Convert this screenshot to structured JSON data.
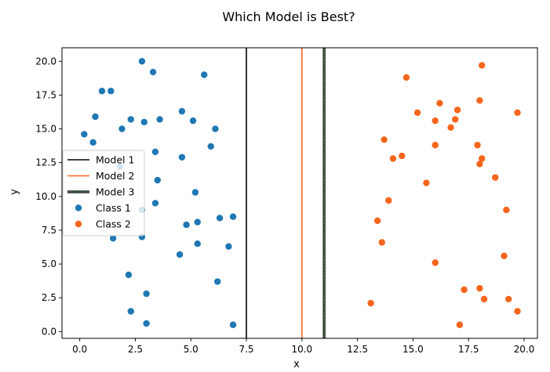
{
  "chart_data": {
    "type": "scatter",
    "title": "Which Model is Best?",
    "xlabel": "x",
    "ylabel": "y",
    "xlim": [
      -0.8,
      20.6
    ],
    "ylim": [
      -0.5,
      21.0
    ],
    "xticks": [
      0.0,
      2.5,
      5.0,
      7.5,
      10.0,
      12.5,
      15.0,
      17.5,
      20.0
    ],
    "xtick_labels": [
      "0.0",
      "2.5",
      "5.0",
      "7.5",
      "10.0",
      "12.5",
      "15.0",
      "17.5",
      "20.0"
    ],
    "yticks": [
      0.0,
      2.5,
      5.0,
      7.5,
      10.0,
      12.5,
      15.0,
      17.5,
      20.0
    ],
    "ytick_labels": [
      "0.0",
      "2.5",
      "5.0",
      "7.5",
      "10.0",
      "12.5",
      "15.0",
      "17.5",
      "20.0"
    ],
    "grid": false,
    "legend_position": "center-left",
    "lines": [
      {
        "name": "Model 1",
        "x": 7.5,
        "color": "#000000",
        "style": "solid"
      },
      {
        "name": "Model 2",
        "x": 10.0,
        "color": "#f5651b",
        "style": "solid"
      },
      {
        "name": "Model 3",
        "x": 11.0,
        "color": "#1b5e20",
        "style": "dotted-double"
      }
    ],
    "series": [
      {
        "name": "Class 1",
        "color": "#1f77b4",
        "points": [
          [
            0.2,
            14.6
          ],
          [
            0.6,
            14.0
          ],
          [
            0.7,
            15.9
          ],
          [
            1.0,
            17.8
          ],
          [
            1.4,
            17.8
          ],
          [
            1.8,
            12.2
          ],
          [
            1.9,
            15.0
          ],
          [
            2.3,
            15.7
          ],
          [
            2.8,
            20.0
          ],
          [
            2.9,
            15.5
          ],
          [
            3.3,
            19.2
          ],
          [
            3.4,
            13.3
          ],
          [
            3.5,
            11.2
          ],
          [
            3.6,
            15.7
          ],
          [
            3.4,
            9.5
          ],
          [
            2.8,
            9.0
          ],
          [
            2.8,
            7.0
          ],
          [
            1.5,
            6.9
          ],
          [
            4.6,
            16.3
          ],
          [
            4.6,
            12.9
          ],
          [
            4.8,
            7.9
          ],
          [
            5.1,
            15.6
          ],
          [
            5.2,
            10.3
          ],
          [
            5.3,
            8.1
          ],
          [
            5.3,
            6.5
          ],
          [
            5.6,
            19.0
          ],
          [
            5.9,
            13.7
          ],
          [
            6.1,
            15.0
          ],
          [
            6.3,
            8.4
          ],
          [
            6.2,
            3.7
          ],
          [
            4.5,
            5.7
          ],
          [
            6.7,
            6.3
          ],
          [
            6.9,
            8.5
          ],
          [
            6.9,
            0.5
          ],
          [
            2.2,
            4.2
          ],
          [
            3.0,
            2.8
          ],
          [
            2.3,
            1.5
          ],
          [
            3.0,
            0.6
          ]
        ]
      },
      {
        "name": "Class 2",
        "color": "#f5651b",
        "points": [
          [
            13.1,
            2.1
          ],
          [
            13.4,
            8.2
          ],
          [
            13.6,
            6.6
          ],
          [
            13.7,
            14.2
          ],
          [
            13.9,
            9.7
          ],
          [
            14.1,
            12.8
          ],
          [
            14.5,
            13.0
          ],
          [
            14.7,
            18.8
          ],
          [
            15.2,
            16.2
          ],
          [
            15.6,
            11.0
          ],
          [
            16.0,
            15.6
          ],
          [
            16.0,
            13.8
          ],
          [
            16.0,
            5.1
          ],
          [
            16.2,
            16.9
          ],
          [
            16.7,
            15.1
          ],
          [
            16.9,
            15.7
          ],
          [
            17.0,
            16.4
          ],
          [
            17.3,
            3.1
          ],
          [
            17.1,
            0.5
          ],
          [
            17.9,
            13.8
          ],
          [
            18.0,
            17.1
          ],
          [
            18.0,
            12.4
          ],
          [
            18.1,
            12.8
          ],
          [
            18.1,
            19.7
          ],
          [
            18.0,
            3.2
          ],
          [
            18.2,
            2.4
          ],
          [
            18.7,
            11.4
          ],
          [
            19.1,
            5.6
          ],
          [
            19.2,
            9.0
          ],
          [
            19.3,
            2.4
          ],
          [
            19.7,
            16.2
          ],
          [
            19.7,
            1.5
          ]
        ]
      }
    ]
  }
}
